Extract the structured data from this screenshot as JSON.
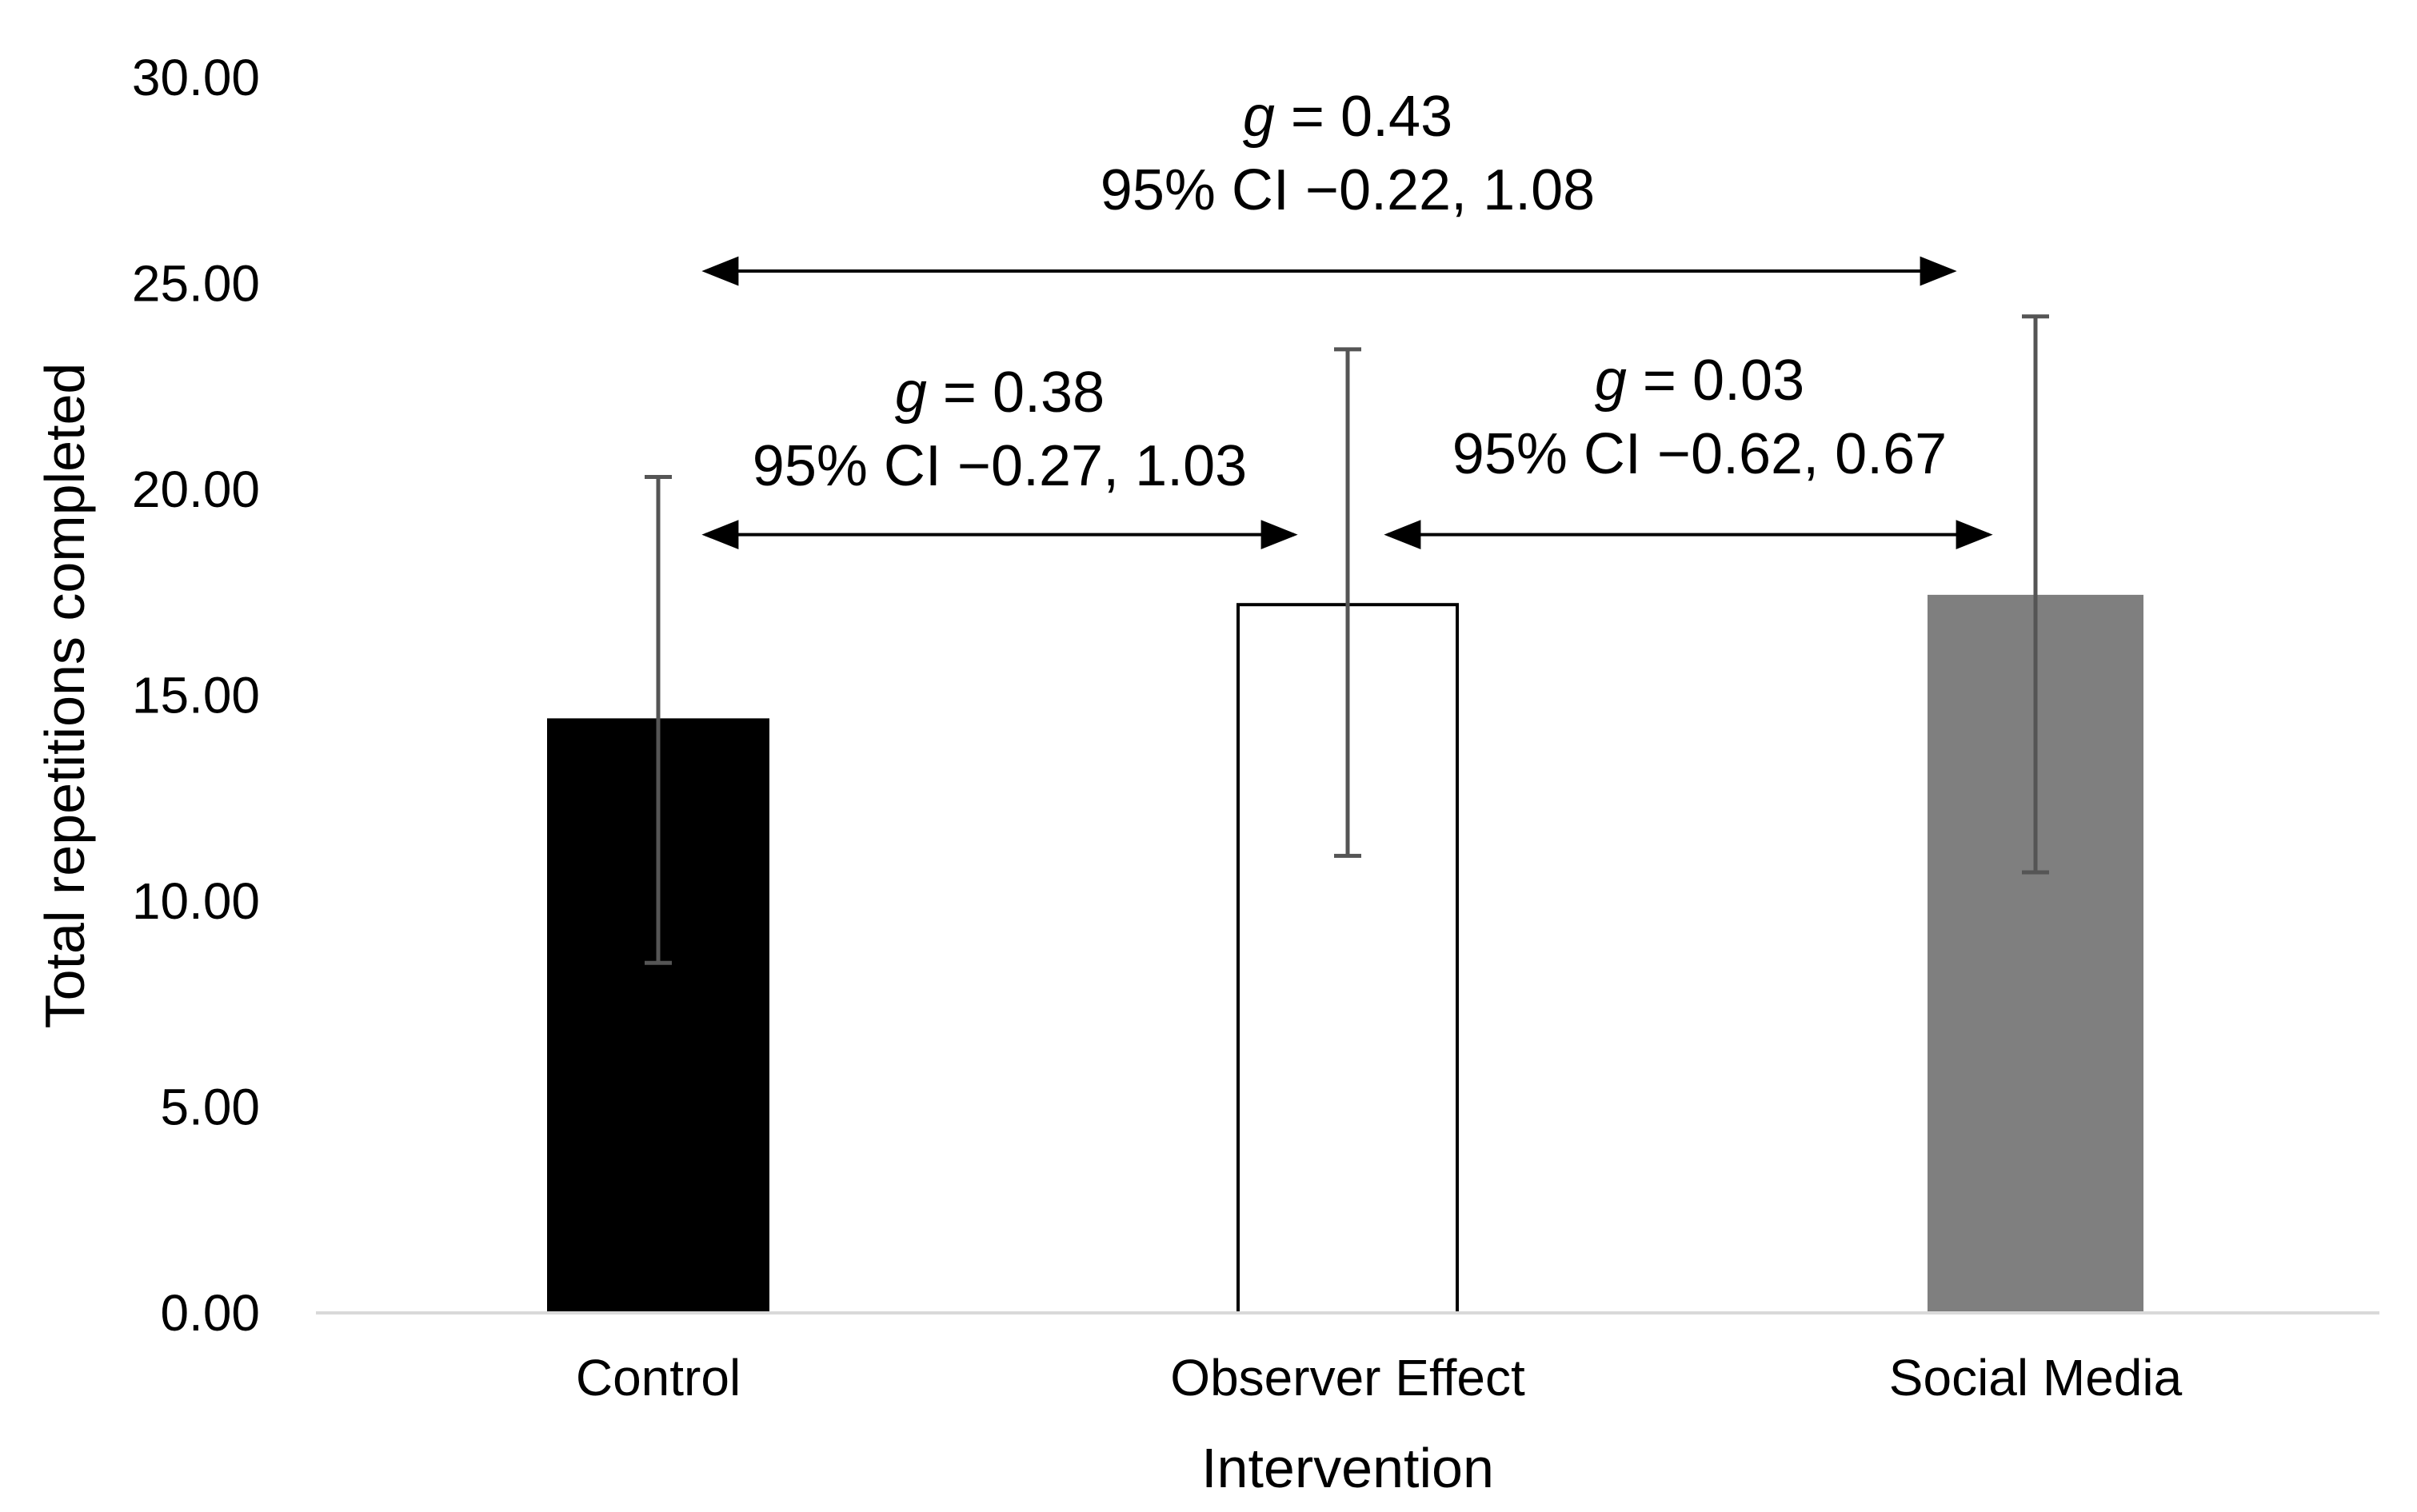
{
  "chart_data": {
    "type": "bar",
    "title": "",
    "xlabel": "Intervention",
    "ylabel": "Total repetitions completed",
    "ylim": [
      0,
      30
    ],
    "yticks": [
      "0.00",
      "5.00",
      "10.00",
      "15.00",
      "20.00",
      "25.00",
      "30.00"
    ],
    "ytick_values": [
      0,
      5,
      10,
      15,
      20,
      25,
      30
    ],
    "grid": false,
    "categories": [
      "Control",
      "Observer Effect",
      "Social Media"
    ],
    "values": [
      14.4,
      17.2,
      17.4
    ],
    "error_bars": [
      {
        "low": 8.5,
        "high": 20.3
      },
      {
        "low": 11.1,
        "high": 23.4
      },
      {
        "low": 10.7,
        "high": 24.2
      }
    ],
    "bar_styles": [
      {
        "fill": "#000000",
        "stroke": "#000000"
      },
      {
        "fill": "#ffffff",
        "stroke": "#000000"
      },
      {
        "fill": "#7f7f7f",
        "stroke": "#7f7f7f"
      }
    ],
    "error_color": "#555555",
    "annotations": [
      {
        "from": "Control",
        "to": "Social Media",
        "level": 25.3,
        "g_symbol": "g",
        "g_text": " = 0.43",
        "ci_text": "95% CI −0.22, 1.08"
      },
      {
        "from": "Control",
        "to": "Observer Effect",
        "level": 18.9,
        "g_symbol": "g",
        "g_text": " = 0.38",
        "ci_text": "95% CI −0.27, 1.03"
      },
      {
        "from": "Observer Effect",
        "to": "Social Media",
        "level": 18.9,
        "g_symbol": "g",
        "g_text": " = 0.03",
        "ci_text": "95% CI −0.62, 0.67"
      }
    ]
  }
}
